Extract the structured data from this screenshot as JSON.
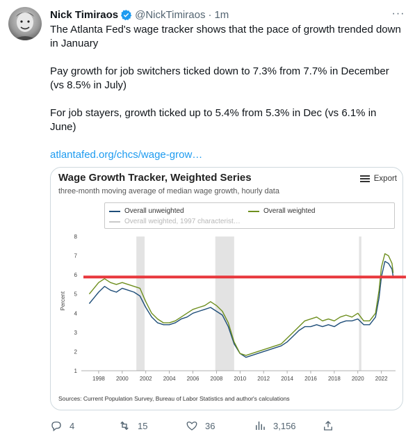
{
  "tweet": {
    "name": "Nick Timiraos",
    "handle": "@NickTimiraos",
    "separator": "·",
    "time": "1m",
    "paragraphs": [
      "The Atlanta Fed's wage tracker shows that the pace of growth trended down in January",
      "Pay growth for job switchers ticked down to 7.3% from 7.7% in December (vs 8.5% in July)",
      "For job stayers, growth ticked up to 5.4% from 5.3% in Dec (vs 6.1% in June)"
    ],
    "link": "atlantafed.org/chcs/wage-grow…",
    "more_glyph": "···"
  },
  "card": {
    "title": "Wage Growth Tracker, Weighted Series",
    "subtitle": "three-month moving average of median wage growth, hourly data",
    "export_label": "Export",
    "source": "Sources: Current Population Survey, Bureau of Labor Statistics and author's calculations"
  },
  "actions": {
    "replies": "4",
    "retweets": "15",
    "likes": "36",
    "views": "3,156"
  },
  "colors": {
    "unweighted": "#1f4e79",
    "weighted": "#6e8f1e",
    "weighted_1997": "#c9c9c9",
    "recession": "#e3e3e3",
    "annotation_line": "#e8383d",
    "link": "#1d9bf0"
  },
  "chart_data": {
    "type": "line",
    "title": "Wage Growth Tracker, Weighted Series",
    "subtitle": "three-month moving average of median wage growth, hourly data",
    "ylabel": "Percent",
    "xlabel": "",
    "ylim": [
      1,
      8
    ],
    "xlim": [
      1997,
      2023.2
    ],
    "y_ticks": [
      "1",
      "2",
      "3",
      "4",
      "5",
      "6",
      "7",
      "8"
    ],
    "x_ticks": [
      "1998",
      "2000",
      "2002",
      "2004",
      "2006",
      "2008",
      "2010",
      "2012",
      "2014",
      "2016",
      "2018",
      "2020",
      "2022"
    ],
    "legend": [
      "Overall unweighted",
      "Overall weighted",
      "Overall weighted, 1997 characterist…"
    ],
    "legend_position": "top",
    "recessions": [
      [
        2001.2,
        2001.9
      ],
      [
        2007.9,
        2009.5
      ],
      [
        2020.1,
        2020.3
      ]
    ],
    "annotation_hline": 5.85,
    "series": [
      {
        "name": "Overall unweighted",
        "x": [
          1997.2,
          1997.6,
          1998.0,
          1998.5,
          1999.0,
          1999.5,
          2000.0,
          2000.5,
          2001.0,
          2001.5,
          2002.0,
          2002.5,
          2003.0,
          2003.5,
          2004.0,
          2004.5,
          2005.0,
          2005.5,
          2006.0,
          2006.5,
          2007.0,
          2007.5,
          2008.0,
          2008.5,
          2009.0,
          2009.5,
          2010.0,
          2010.5,
          2011.0,
          2011.5,
          2012.0,
          2012.5,
          2013.0,
          2013.5,
          2014.0,
          2014.5,
          2015.0,
          2015.5,
          2016.0,
          2016.5,
          2017.0,
          2017.5,
          2018.0,
          2018.5,
          2019.0,
          2019.5,
          2020.0,
          2020.5,
          2021.0,
          2021.5,
          2021.8,
          2022.0,
          2022.3,
          2022.6,
          2022.9,
          2023.0
        ],
        "y": [
          4.5,
          4.8,
          5.1,
          5.4,
          5.2,
          5.1,
          5.3,
          5.2,
          5.1,
          4.9,
          4.3,
          3.8,
          3.5,
          3.4,
          3.4,
          3.5,
          3.7,
          3.8,
          4.0,
          4.1,
          4.2,
          4.3,
          4.1,
          3.9,
          3.3,
          2.4,
          1.9,
          1.7,
          1.8,
          1.9,
          2.0,
          2.1,
          2.2,
          2.3,
          2.5,
          2.8,
          3.1,
          3.3,
          3.3,
          3.4,
          3.3,
          3.4,
          3.3,
          3.5,
          3.6,
          3.6,
          3.7,
          3.4,
          3.4,
          3.8,
          4.8,
          5.9,
          6.7,
          6.6,
          6.3,
          5.9
        ]
      },
      {
        "name": "Overall weighted",
        "x": [
          1997.2,
          1997.6,
          1998.0,
          1998.5,
          1999.0,
          1999.5,
          2000.0,
          2000.5,
          2001.0,
          2001.5,
          2002.0,
          2002.5,
          2003.0,
          2003.5,
          2004.0,
          2004.5,
          2005.0,
          2005.5,
          2006.0,
          2006.5,
          2007.0,
          2007.5,
          2008.0,
          2008.5,
          2009.0,
          2009.5,
          2010.0,
          2010.5,
          2011.0,
          2011.5,
          2012.0,
          2012.5,
          2013.0,
          2013.5,
          2014.0,
          2014.5,
          2015.0,
          2015.5,
          2016.0,
          2016.5,
          2017.0,
          2017.5,
          2018.0,
          2018.5,
          2019.0,
          2019.5,
          2020.0,
          2020.5,
          2021.0,
          2021.5,
          2021.8,
          2022.0,
          2022.3,
          2022.6,
          2022.9,
          2023.0
        ],
        "y": [
          5.0,
          5.3,
          5.6,
          5.8,
          5.6,
          5.5,
          5.6,
          5.5,
          5.4,
          5.3,
          4.6,
          4.0,
          3.7,
          3.5,
          3.5,
          3.6,
          3.8,
          4.0,
          4.2,
          4.3,
          4.4,
          4.6,
          4.4,
          4.1,
          3.5,
          2.5,
          1.9,
          1.8,
          1.9,
          2.0,
          2.1,
          2.2,
          2.3,
          2.4,
          2.7,
          3.0,
          3.3,
          3.6,
          3.7,
          3.8,
          3.6,
          3.7,
          3.6,
          3.8,
          3.9,
          3.8,
          4.0,
          3.6,
          3.6,
          4.0,
          5.2,
          6.4,
          7.1,
          7.0,
          6.6,
          6.1
        ]
      }
    ]
  }
}
